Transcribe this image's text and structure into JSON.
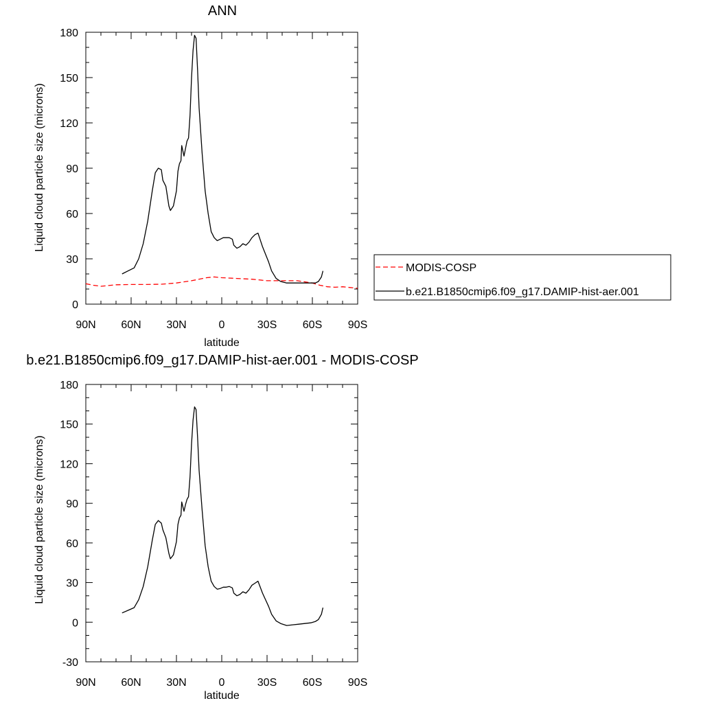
{
  "chart_data": [
    {
      "type": "line",
      "title": "ANN",
      "xlabel": "latitude",
      "ylabel": "Liquid cloud particle size (microns)",
      "xlim": [
        90,
        -90
      ],
      "ylim": [
        0,
        180
      ],
      "xticks": [
        90,
        60,
        30,
        0,
        -30,
        -60,
        -90
      ],
      "xtick_labels": [
        "90N",
        "60N",
        "30N",
        "0",
        "30S",
        "60S",
        "90S"
      ],
      "yticks": [
        0,
        30,
        60,
        90,
        120,
        150,
        180
      ],
      "ytick_labels": [
        "0",
        "30",
        "60",
        "90",
        "120",
        "150",
        "180"
      ],
      "grid": false,
      "legend_position": "right-outside",
      "series": [
        {
          "name": "MODIS-COSP",
          "color": "#ff0000",
          "dash": "dashed",
          "points": [
            [
              90,
              13.5
            ],
            [
              85,
              12.5
            ],
            [
              80,
              11.8
            ],
            [
              75,
              12.3
            ],
            [
              70,
              12.8
            ],
            [
              60,
              13
            ],
            [
              50,
              13
            ],
            [
              40,
              13.2
            ],
            [
              30,
              14
            ],
            [
              20,
              15.5
            ],
            [
              10,
              17.5
            ],
            [
              5,
              18
            ],
            [
              0,
              17.5
            ],
            [
              -10,
              17
            ],
            [
              -20,
              16.5
            ],
            [
              -30,
              15.5
            ],
            [
              -40,
              15.5
            ],
            [
              -50,
              15.5
            ],
            [
              -60,
              14
            ],
            [
              -65,
              12.5
            ],
            [
              -70,
              11.5
            ],
            [
              -75,
              11.2
            ],
            [
              -80,
              11.5
            ],
            [
              -85,
              11
            ],
            [
              -90,
              10.5
            ]
          ]
        },
        {
          "name": "b.e21.B1850cmip6.f09_g17.DAMIP-hist-aer.001",
          "color": "#000000",
          "dash": "solid",
          "points": [
            [
              66,
              20
            ],
            [
              62,
              22
            ],
            [
              58,
              24
            ],
            [
              55,
              30
            ],
            [
              52,
              40
            ],
            [
              49,
              55
            ],
            [
              46,
              75
            ],
            [
              44,
              87
            ],
            [
              42,
              90
            ],
            [
              40,
              89
            ],
            [
              39,
              82
            ],
            [
              37,
              78
            ],
            [
              35,
              65
            ],
            [
              34,
              62
            ],
            [
              32,
              65
            ],
            [
              30,
              75
            ],
            [
              29,
              88
            ],
            [
              28,
              93
            ],
            [
              27,
              95
            ],
            [
              26.5,
              105
            ],
            [
              25,
              98
            ],
            [
              24,
              103
            ],
            [
              23,
              108
            ],
            [
              22,
              110
            ],
            [
              21,
              125
            ],
            [
              20,
              150
            ],
            [
              19,
              168
            ],
            [
              18,
              178
            ],
            [
              17,
              176
            ],
            [
              16,
              155
            ],
            [
              15,
              130
            ],
            [
              13,
              100
            ],
            [
              11,
              75
            ],
            [
              9,
              60
            ],
            [
              7,
              48
            ],
            [
              5,
              44
            ],
            [
              3,
              42
            ],
            [
              1,
              43
            ],
            [
              -1,
              44
            ],
            [
              -3,
              44
            ],
            [
              -5,
              44
            ],
            [
              -7,
              43
            ],
            [
              -8,
              39
            ],
            [
              -10,
              37
            ],
            [
              -12,
              38
            ],
            [
              -14,
              40
            ],
            [
              -16,
              39
            ],
            [
              -18,
              41
            ],
            [
              -20,
              44
            ],
            [
              -22,
              46
            ],
            [
              -24,
              47
            ],
            [
              -25,
              44
            ],
            [
              -27,
              38
            ],
            [
              -29,
              33
            ],
            [
              -31,
              28
            ],
            [
              -33,
              22
            ],
            [
              -36,
              17
            ],
            [
              -39,
              15
            ],
            [
              -43,
              14
            ],
            [
              -47,
              14
            ],
            [
              -51,
              14
            ],
            [
              -55,
              14
            ],
            [
              -59,
              14
            ],
            [
              -62,
              14
            ],
            [
              -64,
              15
            ],
            [
              -66,
              18
            ],
            [
              -67,
              22
            ]
          ]
        }
      ]
    },
    {
      "type": "line",
      "title": "b.e21.B1850cmip6.f09_g17.DAMIP-hist-aer.001 - MODIS-COSP",
      "xlabel": "latitude",
      "ylabel": "Liquid cloud particle size (microns)",
      "xlim": [
        90,
        -90
      ],
      "ylim": [
        -30,
        180
      ],
      "xticks": [
        90,
        60,
        30,
        0,
        -30,
        -60,
        -90
      ],
      "xtick_labels": [
        "90N",
        "60N",
        "30N",
        "0",
        "30S",
        "60S",
        "90S"
      ],
      "yticks": [
        -30,
        0,
        30,
        60,
        90,
        120,
        150,
        180
      ],
      "ytick_labels": [
        "-30",
        "0",
        "30",
        "60",
        "90",
        "120",
        "150",
        "180"
      ],
      "grid": false,
      "series": [
        {
          "color": "#000000",
          "dash": "solid",
          "points": [
            [
              66,
              7
            ],
            [
              62,
              9
            ],
            [
              58,
              11
            ],
            [
              55,
              17
            ],
            [
              52,
              27
            ],
            [
              49,
              42
            ],
            [
              46,
              62
            ],
            [
              44,
              74
            ],
            [
              42,
              77
            ],
            [
              40,
              75
            ],
            [
              39,
              70
            ],
            [
              37,
              64
            ],
            [
              35,
              52
            ],
            [
              34,
              48
            ],
            [
              32,
              51
            ],
            [
              30,
              61
            ],
            [
              29,
              74
            ],
            [
              28,
              79
            ],
            [
              27,
              81
            ],
            [
              26.5,
              91
            ],
            [
              25,
              84
            ],
            [
              24,
              89
            ],
            [
              23,
              93
            ],
            [
              22,
              95
            ],
            [
              21,
              110
            ],
            [
              20,
              135
            ],
            [
              19,
              153
            ],
            [
              18,
              163
            ],
            [
              17,
              161
            ],
            [
              16,
              140
            ],
            [
              15,
              115
            ],
            [
              13,
              85
            ],
            [
              11,
              58
            ],
            [
              9,
              42
            ],
            [
              7,
              31
            ],
            [
              5,
              27
            ],
            [
              3,
              25
            ],
            [
              1,
              25.5
            ],
            [
              -1,
              26.5
            ],
            [
              -3,
              26.5
            ],
            [
              -5,
              27
            ],
            [
              -7,
              26
            ],
            [
              -8,
              22
            ],
            [
              -10,
              20
            ],
            [
              -12,
              21
            ],
            [
              -14,
              23
            ],
            [
              -16,
              22
            ],
            [
              -18,
              24.5
            ],
            [
              -20,
              28
            ],
            [
              -22,
              29.5
            ],
            [
              -24,
              31
            ],
            [
              -25,
              28
            ],
            [
              -27,
              22
            ],
            [
              -29,
              17
            ],
            [
              -31,
              12
            ],
            [
              -33,
              6
            ],
            [
              -36,
              1
            ],
            [
              -39,
              -1
            ],
            [
              -43,
              -2.5
            ],
            [
              -47,
              -2
            ],
            [
              -51,
              -1.5
            ],
            [
              -55,
              -1
            ],
            [
              -59,
              -0.5
            ],
            [
              -62,
              0.5
            ],
            [
              -64,
              2
            ],
            [
              -66,
              6
            ],
            [
              -67,
              11
            ]
          ]
        }
      ]
    }
  ]
}
